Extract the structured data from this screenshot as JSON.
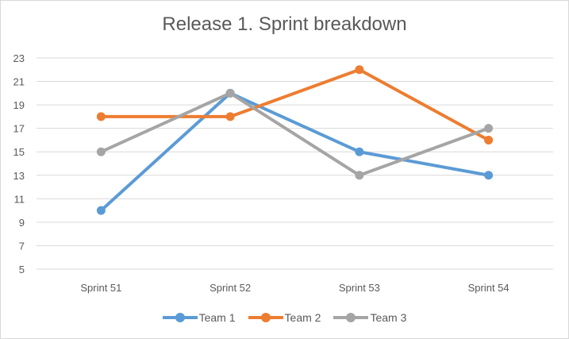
{
  "chart_data": {
    "type": "line",
    "title": "Release 1. Sprint breakdown",
    "xlabel": "",
    "ylabel": "",
    "categories": [
      "Sprint 51",
      "Sprint 52",
      "Sprint 53",
      "Sprint 54"
    ],
    "ylim": [
      5,
      23
    ],
    "yticks": [
      5,
      7,
      9,
      11,
      13,
      15,
      17,
      19,
      21,
      23
    ],
    "grid": true,
    "legend_position": "bottom",
    "series": [
      {
        "name": "Team 1",
        "values": [
          10,
          20,
          15,
          13
        ],
        "color": "#5b9bd5"
      },
      {
        "name": "Team 2",
        "values": [
          18,
          18,
          22,
          16
        ],
        "color": "#ed7d31"
      },
      {
        "name": "Team 3",
        "values": [
          15,
          20,
          13,
          17
        ],
        "color": "#a5a5a5"
      }
    ]
  }
}
